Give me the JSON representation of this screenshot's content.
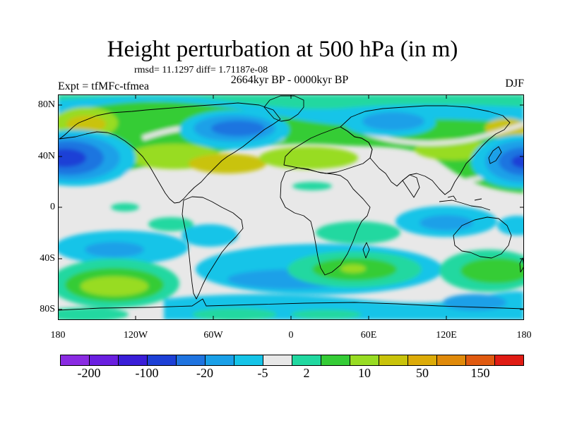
{
  "header": {
    "title": "Height perturbation at 500 hPa (in m)",
    "stats": "rmsd= 11.1297 diff= 1.71187e-08",
    "left_label": "Expt = tfMFc-tfmea",
    "center_label": "2664kyr BP - 0000kyr BP",
    "right_label": "DJF"
  },
  "axes": {
    "lat_ticks": [
      "80N",
      "40N",
      "0",
      "40S",
      "80S"
    ],
    "lon_ticks": [
      "180",
      "120W",
      "60W",
      "0",
      "60E",
      "120E",
      "180"
    ]
  },
  "colorbar": {
    "colors": [
      "#8a2be2",
      "#6a1fe0",
      "#3a1ed8",
      "#1d40d6",
      "#1f74e0",
      "#1aa0e8",
      "#15c4e8",
      "#e8e8e8",
      "#21d8a0",
      "#35cc36",
      "#98dc23",
      "#c9c30a",
      "#dcab08",
      "#e08a0a",
      "#e05a10",
      "#e01c14"
    ],
    "labels": [
      "-200",
      "-100",
      "-20",
      "-5",
      "2",
      "10",
      "50",
      "150"
    ]
  }
}
